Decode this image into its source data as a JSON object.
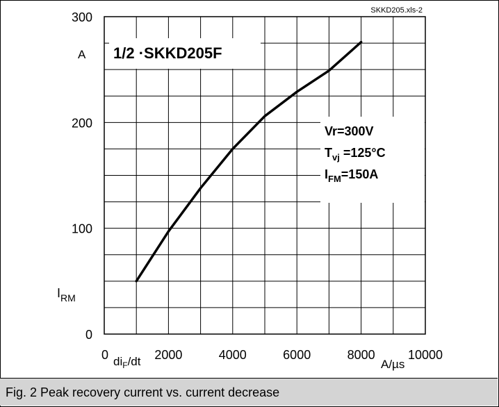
{
  "file_tag": "SKKD205.xls-2",
  "caption": "Fig. 2 Peak recovery current vs. current decrease",
  "chart_data": {
    "type": "line",
    "title": "1/2 ·SKKD205F",
    "xlabel_main": "di",
    "xlabel_sub": "F",
    "xlabel_tail": "/dt",
    "xunit": "A/µs",
    "ylabel_main": "I",
    "ylabel_sub": "RM",
    "yunit": "A",
    "xlim": [
      0,
      10000
    ],
    "ylim": [
      0,
      300
    ],
    "xticks": [
      0,
      2000,
      4000,
      6000,
      8000,
      10000
    ],
    "yticks": [
      0,
      100,
      200,
      300
    ],
    "x_grid_step": 1000,
    "y_grid_step": 25,
    "grid": true,
    "conditions": [
      {
        "main": "Vr=300V",
        "sub": "",
        "tail": ""
      },
      {
        "main": "T",
        "sub": "vj",
        "tail": " =125°C"
      },
      {
        "main": "I",
        "sub": "FM",
        "tail": "=150A"
      }
    ],
    "series": [
      {
        "x": [
          1000,
          2000,
          3000,
          4000,
          5000,
          6000,
          7000,
          8000
        ],
        "y": [
          50,
          97,
          138,
          175,
          206,
          229,
          249,
          276
        ]
      }
    ]
  }
}
